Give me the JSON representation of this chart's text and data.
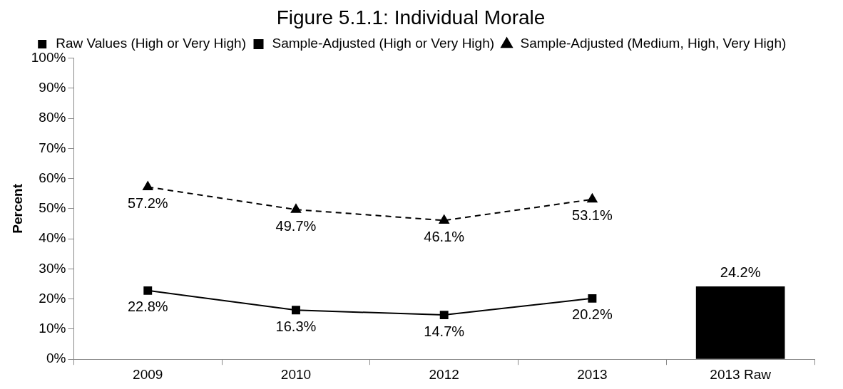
{
  "chart_data": {
    "type": "line",
    "title": "Figure 5.1.1: Individual Morale",
    "ylabel": "Percent",
    "categories": [
      "2009",
      "2010",
      "2012",
      "2013",
      "2013 Raw"
    ],
    "series": [
      {
        "name": "Raw Values (High or Very High)",
        "type": "bar",
        "color": "#000000",
        "values": [
          null,
          null,
          null,
          null,
          24.2
        ],
        "value_labels": [
          null,
          null,
          null,
          null,
          "24.2%"
        ]
      },
      {
        "name": "Sample-Adjusted (High or Very High)",
        "color": "#000000",
        "marker": "square",
        "line_style": "solid",
        "values": [
          22.8,
          16.3,
          14.7,
          20.2,
          null
        ],
        "value_labels": [
          "22.8%",
          "16.3%",
          "14.7%",
          "20.2%",
          null
        ]
      },
      {
        "name": "Sample-Adjusted (Medium, High, Very High)",
        "color": "#000000",
        "marker": "triangle",
        "line_style": "dashed",
        "values": [
          57.2,
          49.7,
          46.1,
          53.1,
          null
        ],
        "value_labels": [
          "57.2%",
          "49.7%",
          "46.1%",
          "53.1%",
          null
        ]
      }
    ],
    "ylim": [
      0,
      100
    ],
    "yticks": [
      {
        "value": 0,
        "label": "0%"
      },
      {
        "value": 10,
        "label": "10%"
      },
      {
        "value": 20,
        "label": "20%"
      },
      {
        "value": 30,
        "label": "30%"
      },
      {
        "value": 40,
        "label": "40%"
      },
      {
        "value": 50,
        "label": "50%"
      },
      {
        "value": 60,
        "label": "60%"
      },
      {
        "value": 70,
        "label": "70%"
      },
      {
        "value": 80,
        "label": "80%"
      },
      {
        "value": 90,
        "label": "90%"
      },
      {
        "value": 100,
        "label": "100%"
      }
    ],
    "legend": "top"
  }
}
